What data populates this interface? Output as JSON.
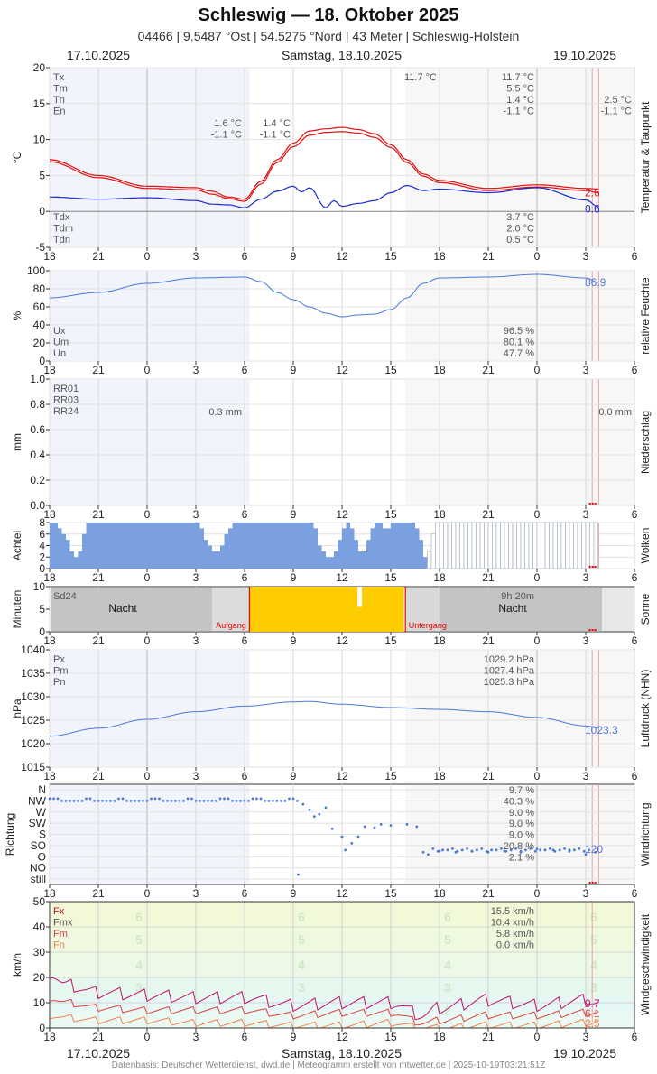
{
  "header": {
    "title": "Schleswig  —  18. Oktober 2025",
    "subtitle": "04466  |  9.5487 °Ost  |  54.5275 °Nord  |  43 Meter  |  Schleswig-Holstein"
  },
  "dates": {
    "left": "17.10.2025",
    "center": "Samstag, 18.10.2025",
    "right": "19.10.2025"
  },
  "footer": {
    "source": "Datenbasis: Deutscher Wetterdienst, dwd.de | Meteogramm erstellt von mtwetter.de | 2025-10-19T03:21:51Z"
  },
  "colors": {
    "red": "#e01010",
    "blue": "#1a2ad0",
    "lightblue": "#4a78d8",
    "cloud": "#7aa0e0",
    "sun": "#ffcc00",
    "night": "#c4c4c4",
    "wind_gust": "#c0106a",
    "wind_mean": "#e04040",
    "wind_min": "#f08050"
  },
  "chart_data": [
    {
      "id": "temp",
      "type": "line",
      "ylabel": "°C",
      "side_label": "Temperatur & Taupunkt",
      "ylim": [
        -5,
        20
      ],
      "yticks": [
        -5,
        0,
        5,
        10,
        15,
        20
      ],
      "grid": true,
      "x_tick_labels": [
        "18",
        "21",
        "0",
        "3",
        "6",
        "9",
        "12",
        "15",
        "18",
        "21",
        "0",
        "3",
        "6"
      ],
      "stats_upper": {
        "keys": [
          "Tx",
          "Tm",
          "Tn",
          "En"
        ],
        "col1": [
          "",
          "",
          "1.6 °C",
          "-1.1 °C"
        ],
        "col2": [
          "",
          "",
          "1.4 °C",
          "-1.1 °C"
        ],
        "col3": [
          "11.7 °C",
          "",
          "",
          ""
        ],
        "col4": [
          "11.7 °C",
          "5.5 °C",
          "1.4 °C",
          "-1.1 °C"
        ],
        "col5": [
          "",
          "",
          "2.5 °C",
          "-1.1 °C"
        ]
      },
      "stats_lower": {
        "keys": [
          "Tdx",
          "Tdm",
          "Tdn"
        ],
        "values": [
          "3.7 °C",
          "2.0 °C",
          "0.5 °C"
        ]
      },
      "series": [
        {
          "name": "Tx",
          "x": [
            -6,
            -3,
            0,
            3,
            4,
            5,
            6,
            7,
            8,
            9,
            10,
            11,
            12,
            13,
            14,
            15,
            16,
            17,
            18,
            21,
            24,
            27,
            27.8
          ],
          "values": [
            7.2,
            5,
            3.5,
            3.3,
            2.8,
            2,
            1.7,
            4.2,
            7.2,
            9.5,
            11.2,
            11.5,
            11.7,
            11.4,
            10.8,
            9.3,
            7.2,
            5.2,
            4.3,
            3.2,
            3.7,
            3.2,
            3.1
          ]
        },
        {
          "name": "Tn",
          "x": [
            -6,
            -3,
            0,
            3,
            4,
            5,
            6,
            7,
            8,
            9,
            10,
            11,
            12,
            13,
            14,
            15,
            16,
            17,
            18,
            21,
            24,
            27,
            27.8
          ],
          "values": [
            6.9,
            4.7,
            3.2,
            3,
            2.4,
            1.8,
            1.4,
            3.8,
            6.8,
            9,
            10.6,
            11,
            11.1,
            10.9,
            10.3,
            8.9,
            6.8,
            4.9,
            4,
            2.9,
            3.4,
            2.9,
            2.6
          ]
        },
        {
          "name": "Td",
          "x": [
            -6,
            -3,
            0,
            3,
            4,
            5,
            6,
            7,
            8,
            9,
            9.5,
            10,
            11,
            11.5,
            12,
            13,
            14,
            15,
            16,
            17,
            18,
            21,
            24,
            27,
            27.8
          ],
          "values": [
            2,
            1.7,
            1.9,
            1.5,
            1,
            0.9,
            0.5,
            1.7,
            2.8,
            3.5,
            2.7,
            3.3,
            0.5,
            1.5,
            0.7,
            1.1,
            1.5,
            2.6,
            3.6,
            2.9,
            3.1,
            2.6,
            3.3,
            1.6,
            0.6
          ]
        }
      ],
      "end_labels": [
        "2.6",
        "0.6"
      ]
    },
    {
      "id": "humidity",
      "type": "line",
      "ylabel": "%",
      "side_label": "relative Feuchte",
      "ylim": [
        0,
        100
      ],
      "yticks": [
        0,
        20,
        40,
        60,
        80,
        100
      ],
      "grid": true,
      "x_tick_labels": [
        "18",
        "21",
        "0",
        "3",
        "6",
        "9",
        "12",
        "15",
        "18",
        "21",
        "0",
        "3",
        "6"
      ],
      "stats": {
        "keys": [
          "Ux",
          "Um",
          "Un"
        ],
        "values": [
          "96.5 %",
          "80.1 %",
          "47.7 %"
        ]
      },
      "series": [
        {
          "name": "U",
          "x": [
            -6,
            -3,
            0,
            3,
            6,
            7,
            8,
            9,
            10,
            11,
            12,
            13,
            14,
            15,
            16,
            17,
            18,
            21,
            24,
            27,
            27.8
          ],
          "values": [
            70,
            76,
            86,
            92,
            93,
            88,
            76,
            68,
            60,
            53,
            49,
            51,
            52,
            57,
            70,
            86,
            92,
            93,
            96,
            92,
            86.9
          ]
        }
      ],
      "end_labels": [
        "86.9"
      ]
    },
    {
      "id": "precip",
      "type": "bar",
      "ylabel": "mm",
      "side_label": "Niederschlag",
      "ylim": [
        0,
        1.0
      ],
      "yticks": [
        0.0,
        0.2,
        0.4,
        0.6,
        0.8,
        1.0
      ],
      "grid": true,
      "x_tick_labels": [
        "18",
        "21",
        "0",
        "3",
        "6",
        "9",
        "12",
        "15",
        "18",
        "21",
        "0",
        "3",
        "6"
      ],
      "stats": {
        "keys": [
          "RR01",
          "RR03",
          "RR24"
        ],
        "mid_value": "0.3 mm",
        "right_value": "0.0 mm"
      },
      "series": [
        {
          "name": "RR01",
          "x": [],
          "values": []
        }
      ]
    },
    {
      "id": "clouds",
      "type": "bar",
      "ylabel": "Achtel",
      "side_label": "Wolken",
      "ylim": [
        0,
        8
      ],
      "yticks": [
        0,
        2,
        4,
        6,
        8
      ],
      "grid": true,
      "x_tick_labels": [
        "18",
        "21",
        "0",
        "3",
        "6",
        "9",
        "12",
        "15",
        "18",
        "21",
        "0",
        "3",
        "6"
      ],
      "series": [
        {
          "name": "Wolken",
          "x": [
            -6,
            -5.5,
            -5,
            -4.5,
            -4,
            -3,
            0,
            3,
            3.5,
            4,
            4.5,
            5,
            8,
            9,
            10,
            10.5,
            11,
            11.5,
            12,
            12.5,
            13,
            13.5,
            14,
            14.5,
            15,
            16,
            16.5,
            17,
            17.5,
            18,
            21,
            24,
            27,
            27.8
          ],
          "values": [
            8,
            6,
            4,
            1,
            8,
            8,
            8,
            8,
            4,
            2,
            5,
            8,
            8,
            8,
            8,
            3,
            1,
            4,
            8,
            6,
            2,
            6,
            8,
            6,
            8,
            8,
            6,
            1,
            8,
            8,
            8,
            8,
            8,
            8
          ]
        }
      ]
    },
    {
      "id": "sun",
      "type": "bar",
      "ylabel": "Minuten",
      "side_label": "Sonne",
      "ylim": [
        0,
        10
      ],
      "yticks": [
        0,
        5,
        10
      ],
      "grid": false,
      "x_tick_labels": [
        "18",
        "21",
        "0",
        "3",
        "6",
        "9",
        "12",
        "15",
        "18",
        "21",
        "0",
        "3",
        "6"
      ],
      "texts": {
        "sd24": "Sd24",
        "night": "Nacht",
        "night2": "Nacht",
        "total": "9h 20m",
        "sunrise": "Aufgang",
        "sunset": "Untergang"
      },
      "sunshine": {
        "from": 6.3,
        "to": 15.9,
        "values": [
          10
        ]
      }
    },
    {
      "id": "pressure",
      "type": "line",
      "ylabel": "hPa",
      "side_label": "Luftdruck (NHN)",
      "ylim": [
        1015,
        1040
      ],
      "yticks": [
        1015,
        1020,
        1025,
        1030,
        1035,
        1040
      ],
      "grid": true,
      "x_tick_labels": [
        "18",
        "21",
        "0",
        "3",
        "6",
        "9",
        "12",
        "15",
        "18",
        "21",
        "0",
        "3",
        "6"
      ],
      "stats": {
        "keys": [
          "Px",
          "Pm",
          "Pn"
        ],
        "values": [
          "1029.2 hPa",
          "1027.4 hPa",
          "1025.3 hPa"
        ]
      },
      "series": [
        {
          "name": "P",
          "x": [
            -6,
            -3,
            0,
            3,
            6,
            9,
            10,
            12,
            15,
            18,
            21,
            24,
            27,
            27.8
          ],
          "values": [
            1021.6,
            1023.3,
            1025.2,
            1026.8,
            1028,
            1028.9,
            1029,
            1028.4,
            1027.7,
            1027.3,
            1026.8,
            1025.6,
            1023.8,
            1023.3
          ]
        }
      ],
      "end_labels": [
        "1023.3"
      ]
    },
    {
      "id": "winddir",
      "type": "scatter",
      "ylabel": "Richtung",
      "side_label": "Windrichtung",
      "categories": [
        "N",
        "NW",
        "W",
        "SW",
        "S",
        "SO",
        "O",
        "NO",
        "still"
      ],
      "stats_values": [
        "9.7 %",
        "40.3 %",
        "9.0 %",
        "9.0 %",
        "9.0 %",
        "20.8 %",
        "2.1 %"
      ],
      "x_tick_labels": [
        "18",
        "21",
        "0",
        "3",
        "6",
        "9",
        "12",
        "15",
        "18",
        "21",
        "0",
        "3",
        "6"
      ],
      "end_labels": [
        "120"
      ]
    },
    {
      "id": "wind",
      "type": "line",
      "ylabel": "km/h",
      "side_label": "Windgeschwindigkeit",
      "ylim": [
        0,
        50
      ],
      "yticks": [
        0,
        10,
        20,
        30,
        40,
        50
      ],
      "grid": true,
      "x_tick_labels": [
        "18",
        "21",
        "0",
        "3",
        "6",
        "9",
        "12",
        "15",
        "18",
        "21",
        "0",
        "3",
        "6"
      ],
      "stats": {
        "keys": [
          "Fx",
          "Fmx",
          "Fm",
          "Fn"
        ],
        "values": [
          "15.5 km/h",
          "10.4 km/h",
          "5.8 km/h",
          "0.0 km/h"
        ]
      },
      "beaufort_labels": [
        "6",
        "5",
        "4",
        "3",
        "2"
      ],
      "series": [
        {
          "name": "Fx",
          "x": [
            -6,
            -5,
            -3,
            0,
            3,
            6,
            9,
            12,
            15,
            17,
            18,
            21,
            24,
            27,
            27.8
          ],
          "values": [
            22,
            17,
            14,
            13,
            12,
            12,
            9,
            10,
            10,
            5,
            8,
            11,
            9,
            11,
            9.7
          ]
        },
        {
          "name": "Fm",
          "x": [
            -6,
            -5,
            -3,
            0,
            3,
            6,
            9,
            12,
            15,
            17,
            18,
            21,
            24,
            27,
            27.8
          ],
          "values": [
            12,
            10,
            8,
            7,
            7,
            7,
            5,
            6,
            6,
            2,
            3,
            5,
            5,
            6,
            6.1
          ]
        },
        {
          "name": "Fn",
          "x": [
            -6,
            -5,
            -3,
            0,
            3,
            6,
            9,
            12,
            15,
            17,
            18,
            21,
            24,
            27,
            27.8
          ],
          "values": [
            5,
            4,
            3,
            3,
            2,
            2,
            1,
            1,
            2,
            0,
            0,
            1,
            1,
            2,
            2.5
          ]
        }
      ],
      "end_labels": [
        "9.7",
        "6.1",
        "2.5"
      ]
    }
  ]
}
